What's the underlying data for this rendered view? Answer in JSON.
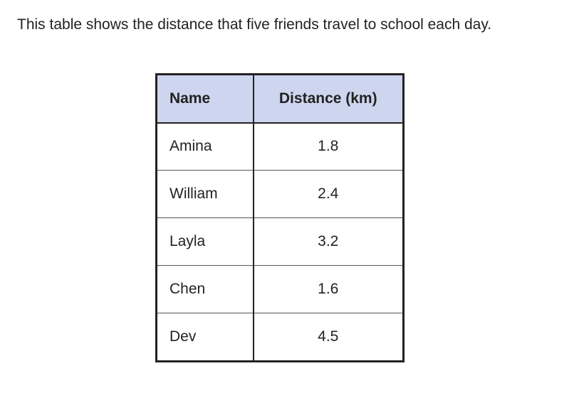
{
  "intro_text": "This table shows the distance that five friends travel to school each day.",
  "table": {
    "headers": {
      "name": "Name",
      "distance": "Distance (km)"
    },
    "rows": [
      {
        "name": "Amina",
        "distance": "1.8"
      },
      {
        "name": "William",
        "distance": "2.4"
      },
      {
        "name": "Layla",
        "distance": "3.2"
      },
      {
        "name": "Chen",
        "distance": "1.6"
      },
      {
        "name": "Dev",
        "distance": "4.5"
      }
    ],
    "header_bg_color": "#cdd6ee"
  }
}
